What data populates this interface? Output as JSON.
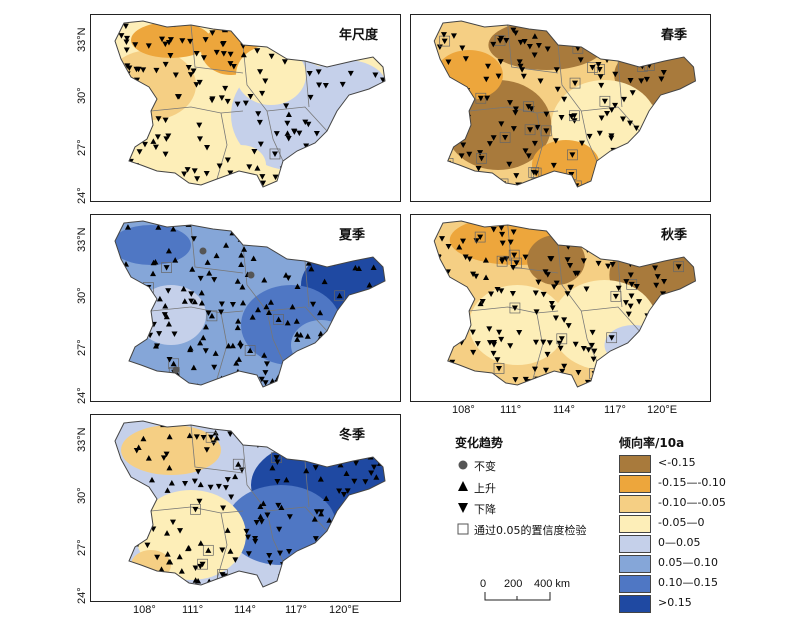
{
  "panels": [
    {
      "title": "年尺度"
    },
    {
      "title": "春季"
    },
    {
      "title": "夏季"
    },
    {
      "title": "秋季"
    },
    {
      "title": "冬季"
    }
  ],
  "axis": {
    "lat_ticks": [
      "33°N",
      "30°",
      "27°",
      "24°"
    ],
    "lon_ticks": [
      "108°",
      "111°",
      "114°",
      "117°",
      "120°E"
    ]
  },
  "trend_legend": {
    "title": "变化趋势",
    "items": [
      {
        "symbol": "circle",
        "label": "不变"
      },
      {
        "symbol": "triangle-up",
        "label": "上升"
      },
      {
        "symbol": "triangle-down",
        "label": "下降"
      },
      {
        "symbol": "square-outline",
        "label": "通过0.05的置信度检验"
      }
    ]
  },
  "rate_legend": {
    "title": "倾向率/10a",
    "classes": [
      {
        "label": "<-0.15",
        "color": "#a87a3c"
      },
      {
        "label": "-0.15—-0.10",
        "color": "#eda63c"
      },
      {
        "label": "-0.10—-0.05",
        "color": "#f5cf84"
      },
      {
        "label": "-0.05—0",
        "color": "#fdeeb8"
      },
      {
        "label": "0—0.05",
        "color": "#c5d0ea"
      },
      {
        "label": "0.05—0.10",
        "color": "#85a6d8"
      },
      {
        "label": "0.10—0.15",
        "color": "#4f77c4"
      },
      {
        "label": ">0.15",
        "color": "#1f49a2"
      }
    ]
  },
  "scale_bar": {
    "ticks": [
      "0",
      "200",
      "400 km"
    ]
  }
}
